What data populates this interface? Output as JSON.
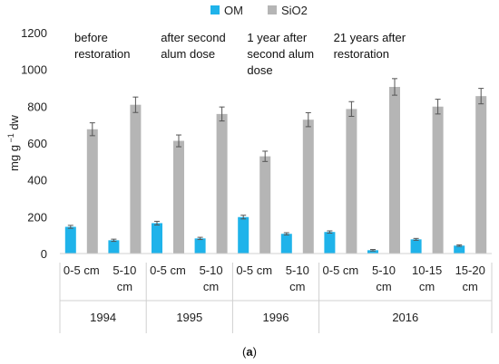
{
  "chart_data": {
    "type": "bar",
    "ylabel_main": "mg g",
    "ylabel_sup": "−1",
    "ylabel_tail": " dw",
    "ylim": [
      0,
      1200
    ],
    "yticks": [
      0,
      200,
      400,
      600,
      800,
      1000,
      1200
    ],
    "grid": false,
    "legend_position": "top-center",
    "colors": {
      "OM": "#1fb3ea",
      "SiO2": "#b5b5b5"
    },
    "categories": [
      {
        "l1": "0-5 cm",
        "l2": ""
      },
      {
        "l1": "5-10",
        "l2": "cm"
      },
      {
        "l1": "0-5 cm",
        "l2": ""
      },
      {
        "l1": "5-10",
        "l2": "cm"
      },
      {
        "l1": "0-5 cm",
        "l2": ""
      },
      {
        "l1": "5-10",
        "l2": "cm"
      },
      {
        "l1": "0-5 cm",
        "l2": ""
      },
      {
        "l1": "5-10",
        "l2": "cm"
      },
      {
        "l1": "10-15",
        "l2": "cm"
      },
      {
        "l1": "15-20",
        "l2": "cm"
      }
    ],
    "groups": [
      {
        "label": "1994",
        "span": [
          0,
          1
        ]
      },
      {
        "label": "1995",
        "span": [
          2,
          3
        ]
      },
      {
        "label": "1996",
        "span": [
          4,
          5
        ]
      },
      {
        "label": "2016",
        "span": [
          6,
          9
        ]
      }
    ],
    "series": [
      {
        "name": "OM",
        "values": [
          145,
          72,
          165,
          82,
          198,
          107,
          117,
          18,
          77,
          43
        ],
        "errors": [
          8,
          6,
          10,
          6,
          10,
          6,
          6,
          4,
          5,
          4
        ]
      },
      {
        "name": "SiO2",
        "values": [
          675,
          808,
          612,
          758,
          528,
          727,
          785,
          905,
          798,
          855
        ],
        "errors": [
          35,
          42,
          32,
          38,
          28,
          38,
          40,
          45,
          40,
          42
        ]
      }
    ],
    "annotations": [
      {
        "lines": [
          "before",
          "restoration"
        ],
        "at": 0
      },
      {
        "lines": [
          "after second",
          "alum dose"
        ],
        "at": 2
      },
      {
        "lines": [
          "1 year after",
          "second alum",
          "dose"
        ],
        "at": 4
      },
      {
        "lines": [
          "21 years after",
          "restoration"
        ],
        "at": 6
      }
    ],
    "caption_open": "(",
    "caption_letter": "a",
    "caption_close": ")"
  }
}
